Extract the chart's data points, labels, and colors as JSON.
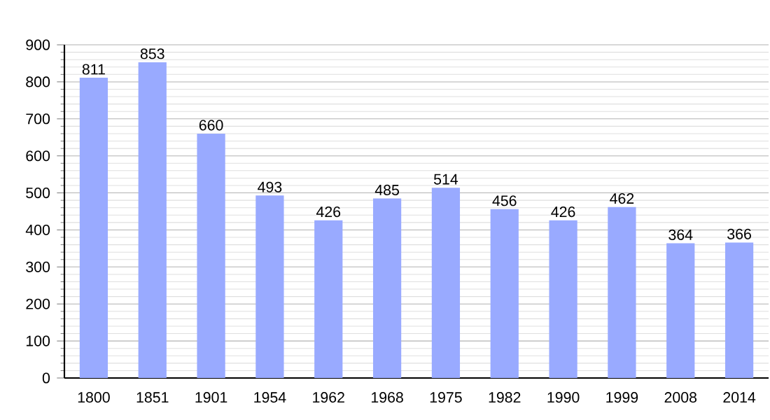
{
  "chart_data": {
    "type": "bar",
    "categories": [
      "1800",
      "1851",
      "1901",
      "1954",
      "1962",
      "1968",
      "1975",
      "1982",
      "1990",
      "1999",
      "2008",
      "2014"
    ],
    "values": [
      811,
      853,
      660,
      493,
      426,
      485,
      514,
      456,
      426,
      462,
      364,
      366
    ],
    "color": "#99aaff",
    "data_labels": true,
    "grid": "y",
    "ylim": [
      0,
      900
    ],
    "yticks": [
      0,
      100,
      200,
      300,
      400,
      500,
      600,
      700,
      800,
      900
    ]
  }
}
